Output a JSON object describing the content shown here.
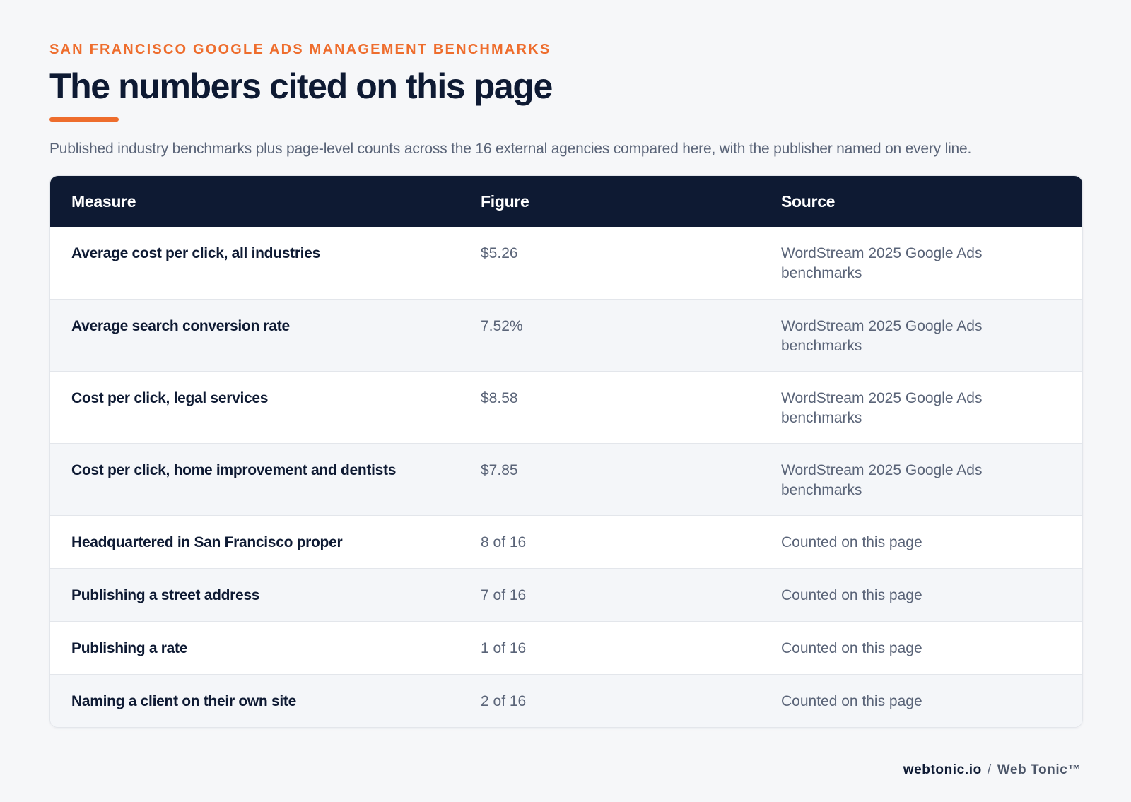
{
  "header": {
    "eyebrow": "SAN FRANCISCO GOOGLE ADS MANAGEMENT BENCHMARKS",
    "title": "The numbers cited on this page",
    "subtitle": "Published industry benchmarks plus page-level counts across the 16 external agencies compared here, with the publisher named on every line."
  },
  "table": {
    "columns": [
      "Measure",
      "Figure",
      "Source"
    ],
    "rows": [
      {
        "measure": "Average cost per click, all industries",
        "figure": "$5.26",
        "source": "WordStream 2025 Google Ads benchmarks"
      },
      {
        "measure": "Average search conversion rate",
        "figure": "7.52%",
        "source": "WordStream 2025 Google Ads benchmarks"
      },
      {
        "measure": "Cost per click, legal services",
        "figure": "$8.58",
        "source": "WordStream 2025 Google Ads benchmarks"
      },
      {
        "measure": "Cost per click, home improvement and dentists",
        "figure": "$7.85",
        "source": "WordStream 2025 Google Ads benchmarks"
      },
      {
        "measure": "Headquartered in San Francisco proper",
        "figure": "8 of 16",
        "source": "Counted on this page"
      },
      {
        "measure": "Publishing a street address",
        "figure": "7 of 16",
        "source": "Counted on this page"
      },
      {
        "measure": "Publishing a rate",
        "figure": "1 of 16",
        "source": "Counted on this page"
      },
      {
        "measure": "Naming a client on their own site",
        "figure": "2 of 16",
        "source": "Counted on this page"
      }
    ]
  },
  "footer": {
    "domain": "webtonic.io",
    "separator": "/",
    "brand": "Web Tonic™"
  },
  "colors": {
    "accent": "#ee6d2d",
    "navy": "#0e1a33",
    "muted_text": "#5a6478",
    "background": "#f6f7f9",
    "row_alt": "#f4f6f9"
  }
}
